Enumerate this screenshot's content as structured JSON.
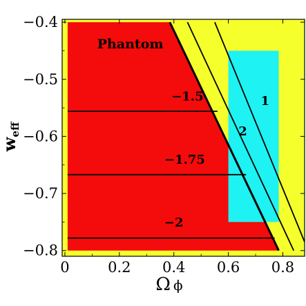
{
  "chart_data": {
    "type": "area",
    "title": "",
    "xlabel": "Ω",
    "xlabel_sub": "ϕ",
    "ylabel": "w",
    "ylabel_sub": "eff",
    "xlim": [
      -0.01,
      0.88
    ],
    "ylim": [
      -0.81,
      -0.395
    ],
    "x_ticks": [
      0,
      0.2,
      0.4,
      0.6,
      0.8
    ],
    "x_tick_labels": [
      "0",
      "0.2",
      "0.4",
      "0.6",
      "0.8"
    ],
    "y_ticks": [
      -0.4,
      -0.5,
      -0.6,
      -0.7,
      -0.8
    ],
    "y_tick_labels": [
      "−0.4",
      "−0.5",
      "−0.6",
      "−0.7",
      "−0.8"
    ],
    "grid": false,
    "colors": {
      "background": "#f5ff2c",
      "phantom": "#f40b0b",
      "cyan": "#1ef2f2",
      "line": "#000000"
    },
    "regions": [
      {
        "label": "Phantom",
        "polygon": [
          [
            0.01,
            -0.4
          ],
          [
            0.385,
            -0.4
          ],
          [
            0.785,
            -0.8
          ],
          [
            0.01,
            -0.8
          ]
        ],
        "color": "#f40b0b"
      },
      {
        "label": "",
        "rect": {
          "x": [
            0.6,
            0.785
          ],
          "y": [
            -0.75,
            -0.45
          ]
        },
        "color": "#1ef2f2"
      }
    ],
    "series": [
      {
        "label": "",
        "kind": "boundary",
        "points": [
          [
            0.385,
            -0.4
          ],
          [
            0.785,
            -0.8
          ]
        ]
      },
      {
        "label": "2",
        "points": [
          [
            0.45,
            -0.4
          ],
          [
            0.84,
            -0.8
          ]
        ]
      },
      {
        "label": "1",
        "points": [
          [
            0.55,
            -0.4
          ],
          [
            0.88,
            -0.785
          ]
        ]
      },
      {
        "label": "−1.5",
        "kind": "contour",
        "points": [
          [
            0.01,
            -0.556
          ],
          [
            0.56,
            -0.556
          ]
        ]
      },
      {
        "label": "−1.75",
        "kind": "contour",
        "points": [
          [
            0.01,
            -0.667
          ],
          [
            0.665,
            -0.667
          ]
        ]
      },
      {
        "label": "−2",
        "kind": "contour",
        "points": [
          [
            0.01,
            -0.778
          ],
          [
            0.77,
            -0.778
          ]
        ]
      }
    ],
    "annotations": [
      {
        "text": "Phantom",
        "x": 0.24,
        "y": -0.446
      },
      {
        "text": "−1.5",
        "x": 0.45,
        "y": -0.537
      },
      {
        "text": "−1.75",
        "x": 0.44,
        "y": -0.648
      },
      {
        "text": "−2",
        "x": 0.4,
        "y": -0.758
      },
      {
        "text": "1",
        "x": 0.735,
        "y": -0.545
      },
      {
        "text": "2",
        "x": 0.653,
        "y": -0.598
      }
    ]
  }
}
